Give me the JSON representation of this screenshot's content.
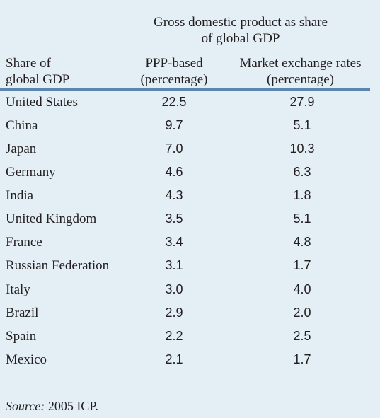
{
  "table": {
    "group_header": {
      "line1": "Gross domestic product as share",
      "line2": "of global GDP"
    },
    "columns": {
      "label": {
        "line1": "Share of",
        "line2": "global GDP"
      },
      "ppp": {
        "line1": "PPP-based",
        "line2": "(percentage)"
      },
      "mer": {
        "line1": "Market exchange rates",
        "line2": "(percentage)"
      }
    },
    "rows": [
      {
        "country": "United States",
        "ppp": "22.5",
        "mer": "27.9"
      },
      {
        "country": "China",
        "ppp": "9.7",
        "mer": "5.1"
      },
      {
        "country": "Japan",
        "ppp": "7.0",
        "mer": "10.3"
      },
      {
        "country": "Germany",
        "ppp": "4.6",
        "mer": "6.3"
      },
      {
        "country": "India",
        "ppp": "4.3",
        "mer": "1.8"
      },
      {
        "country": "United Kingdom",
        "ppp": "3.5",
        "mer": "5.1"
      },
      {
        "country": "France",
        "ppp": "3.4",
        "mer": "4.8"
      },
      {
        "country": "Russian Federation",
        "ppp": "3.1",
        "mer": "1.7"
      },
      {
        "country": "Italy",
        "ppp": "3.0",
        "mer": "4.0"
      },
      {
        "country": "Brazil",
        "ppp": "2.9",
        "mer": "2.0"
      },
      {
        "country": "Spain",
        "ppp": "2.2",
        "mer": "2.5"
      },
      {
        "country": "Mexico",
        "ppp": "2.1",
        "mer": "1.7"
      }
    ],
    "source": {
      "label": "Source:",
      "text": " 2005 ICP."
    }
  },
  "colors": {
    "background": "#e4eef5",
    "rule": "#5a86ad",
    "text": "#231f20"
  }
}
